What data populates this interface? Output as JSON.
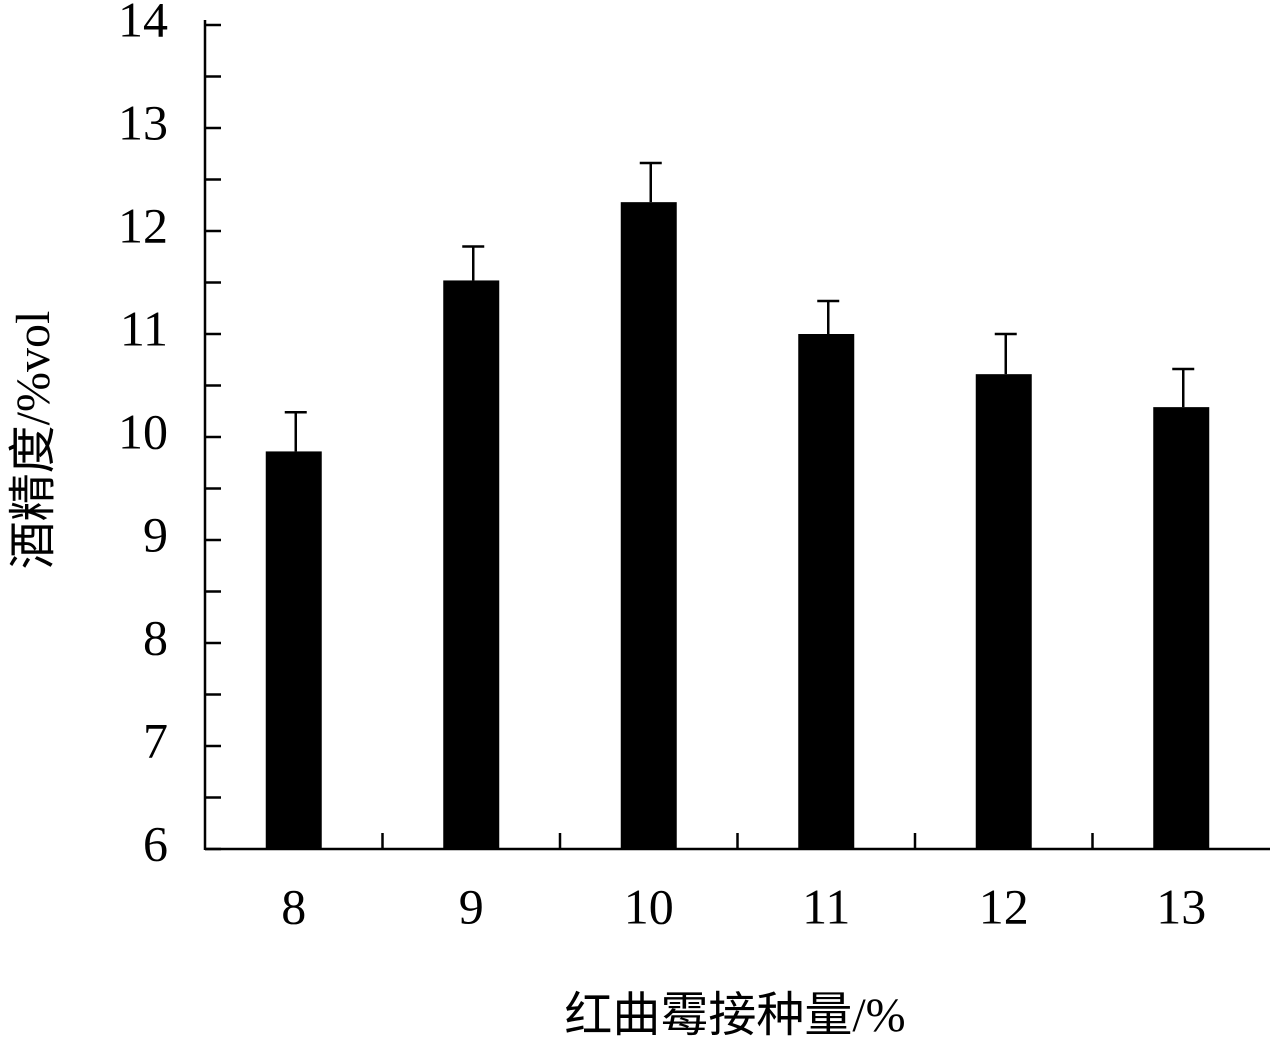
{
  "chart_data": {
    "type": "bar",
    "x_label": "红曲霉接种量/%",
    "y_label": "酒精度/%vol",
    "categories": [
      "8",
      "9",
      "10",
      "11",
      "12",
      "13"
    ],
    "values": [
      9.86,
      11.52,
      12.28,
      11.0,
      10.61,
      10.29
    ],
    "errors": [
      0.38,
      0.33,
      0.38,
      0.32,
      0.39,
      0.37
    ],
    "color": "#000000",
    "ylim": [
      6,
      14
    ],
    "yticks": [
      6,
      7,
      8,
      9,
      10,
      11,
      12,
      13,
      14
    ],
    "yticks_minor": [
      6.5,
      7.5,
      8.5,
      9.5,
      10.5,
      11.5,
      12.5,
      13.5
    ]
  }
}
